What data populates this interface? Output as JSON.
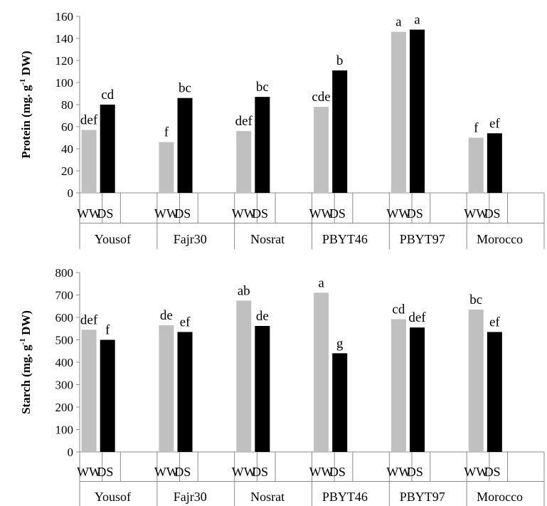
{
  "colors": {
    "WW": "#c0c0c0",
    "DS": "#000000"
  },
  "chart_data": [
    {
      "type": "bar",
      "ylabel_main": "Protein (mg. g",
      "ylabel_sup": "-1",
      "ylabel_tail": " DW)",
      "ylim": [
        0,
        160
      ],
      "yticks": [
        0,
        20,
        40,
        60,
        80,
        100,
        120,
        140,
        160
      ],
      "groups": [
        "Yousof",
        "Fajr30",
        "Nosrat",
        "PBYT46",
        "PBYT97",
        "Morocco"
      ],
      "conditions": [
        "WW",
        "DS"
      ],
      "series": [
        {
          "name": "WW",
          "values": [
            57,
            46,
            56,
            78,
            146,
            50
          ],
          "letters": [
            "def",
            "f",
            "def",
            "cde",
            "a",
            "f"
          ]
        },
        {
          "name": "DS",
          "values": [
            80,
            86,
            87,
            111,
            148,
            54
          ],
          "letters": [
            "cd",
            "bc",
            "bc",
            "b",
            "a",
            "ef"
          ]
        }
      ]
    },
    {
      "type": "bar",
      "ylabel_main": "Starch (mg. g",
      "ylabel_sup": "-1",
      "ylabel_tail": " DW)",
      "ylim": [
        0,
        800
      ],
      "yticks": [
        0,
        100,
        200,
        300,
        400,
        500,
        600,
        700,
        800
      ],
      "groups": [
        "Yousof",
        "Fajr30",
        "Nosrat",
        "PBYT46",
        "PBYT97",
        "Morocco"
      ],
      "conditions": [
        "WW",
        "DS"
      ],
      "series": [
        {
          "name": "WW",
          "values": [
            545,
            565,
            675,
            710,
            592,
            635
          ],
          "letters": [
            "def",
            "de",
            "ab",
            "a",
            "cd",
            "bc"
          ]
        },
        {
          "name": "DS",
          "values": [
            500,
            535,
            562,
            440,
            555,
            535
          ],
          "letters": [
            "f",
            "ef",
            "de",
            "g",
            "def",
            "ef"
          ]
        }
      ]
    }
  ]
}
